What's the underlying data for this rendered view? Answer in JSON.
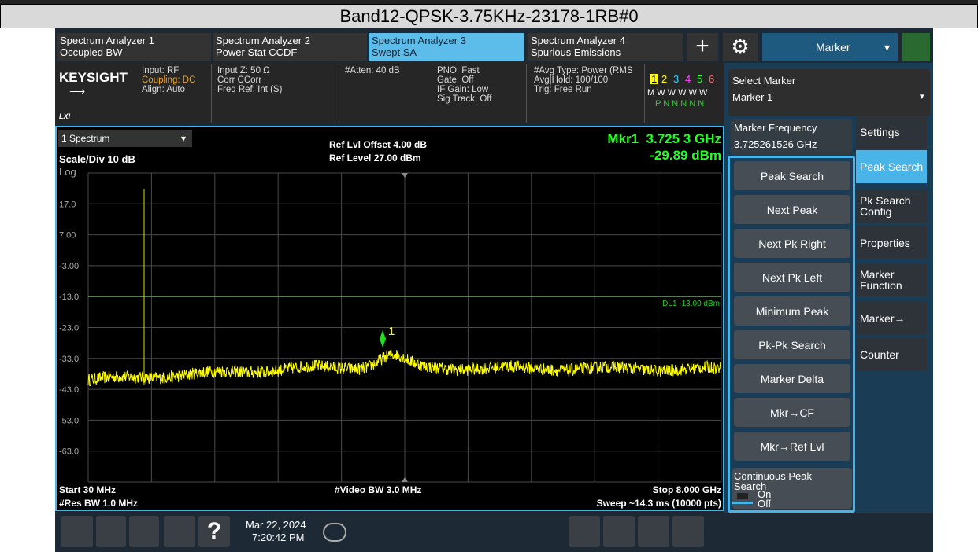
{
  "title": "Band12-QPSK-3.75KHz-23178-1RB#0",
  "tabs": [
    {
      "line1": "Spectrum Analyzer 1",
      "line2": "Occupied BW"
    },
    {
      "line1": "Spectrum Analyzer 2",
      "line2": "Power Stat CCDF"
    },
    {
      "line1": "Spectrum Analyzer 3",
      "line2": "Swept SA"
    },
    {
      "line1": "Spectrum Analyzer 4",
      "line2": "Spurious Emissions"
    }
  ],
  "menu": "Marker",
  "info": {
    "brand": "KEYSIGHT",
    "lxi": "LXI",
    "col1": [
      "Input: RF",
      "Coupling: DC",
      "Align: Auto"
    ],
    "col2": [
      "Input Z: 50 Ω",
      "Corr CCorr",
      "Freq Ref: Int (S)"
    ],
    "col3": [
      "#Atten: 40 dB"
    ],
    "col4": [
      "PNO: Fast",
      "Gate: Off",
      "IF Gain: Low",
      "Sig Track: Off"
    ],
    "col5": [
      "#Avg Type: Power (RMS",
      "Avg|Hold: 100/100",
      "Trig: Free Run"
    ],
    "traces": [
      "1",
      "2",
      "3",
      "4",
      "5",
      "6"
    ],
    "trace_types": "M W W W W W",
    "detectors": "P N N N N N"
  },
  "graph": {
    "window": "1 Spectrum",
    "scale": "Scale/Div 10 dB",
    "log": "Log",
    "ref_offset": "Ref Lvl Offset 4.00 dB",
    "ref_level": "Ref Level 27.00 dBm",
    "marker_readout": "Mkr1  3.725 3 GHz",
    "marker_level": "-29.89 dBm",
    "y_labels": [
      "17.0",
      "7.00",
      "-3.00",
      "-13.0",
      "-23.0",
      "-33.0",
      "-43.0",
      "-53.0",
      "-63.0"
    ],
    "display_line": "DL1 -13.00 dBm",
    "marker_label": "1",
    "start": "Start 30 MHz",
    "res_bw": "#Res BW 1.0 MHz",
    "video_bw": "#Video BW 3.0 MHz",
    "stop": "Stop 8.000 GHz",
    "sweep": "Sweep ~14.3 ms (10000 pts)"
  },
  "right_panel": {
    "select_marker": "Select Marker",
    "selected": "Marker 1",
    "freq_label": "Marker Frequency",
    "freq_value": "3.725261526 GHz",
    "buttons": [
      "Peak Search",
      "Next Peak",
      "Next Pk Right",
      "Next Pk Left",
      "Minimum Peak",
      "Pk-Pk Search",
      "Marker Delta",
      "Mkr→CF",
      "Mkr→Ref Lvl"
    ],
    "continuous": "Continuous Peak Search",
    "on": "On",
    "off": "Off",
    "side_tabs": [
      "Settings",
      "Peak Search",
      "Pk Search Config",
      "Properties",
      "Marker Function",
      "Marker→",
      "Counter"
    ]
  },
  "toolbar": {
    "date": "Mar 22, 2024",
    "time": "7:20:42 PM"
  }
}
